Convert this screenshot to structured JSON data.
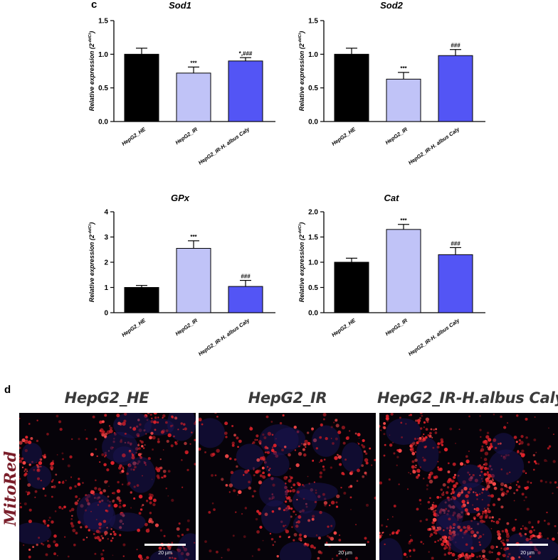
{
  "panel_c_letter": "c",
  "panel_d_letter": "d",
  "colors": {
    "HepG2_HE": "#000000",
    "HepG2_IR": "#c0c3f7",
    "HepG2_IR-H. albus Caly": "#5355f5"
  },
  "ylabel_main": "Relative expression (2",
  "ylabel_sup": "-ddCt",
  "ylabel_close": ")",
  "chart_data": [
    {
      "type": "bar",
      "title": "Sod1",
      "categories": [
        "HepG2_HE",
        "HepG2_IR",
        "HepG2_IR-H. albus Caly"
      ],
      "values": [
        1.0,
        0.72,
        0.9
      ],
      "errors": [
        0.09,
        0.09,
        0.05
      ],
      "annotations": [
        "",
        "***",
        "*,###"
      ],
      "ylim": [
        0,
        1.5
      ],
      "yticks": [
        "0.0",
        "0.5",
        "1.0",
        "1.5"
      ],
      "ytick_values": [
        0,
        0.5,
        1.0,
        1.5
      ]
    },
    {
      "type": "bar",
      "title": "Sod2",
      "categories": [
        "HepG2_HE",
        "HepG2_IR",
        "HepG2_IR-H. albus Caly"
      ],
      "values": [
        1.0,
        0.63,
        0.98
      ],
      "errors": [
        0.09,
        0.1,
        0.09
      ],
      "annotations": [
        "",
        "***",
        "###"
      ],
      "ylim": [
        0,
        1.5
      ],
      "yticks": [
        "0.0",
        "0.5",
        "1.0",
        "1.5"
      ],
      "ytick_values": [
        0,
        0.5,
        1.0,
        1.5
      ]
    },
    {
      "type": "bar",
      "title": "GPx",
      "categories": [
        "HepG2_HE",
        "HepG2_IR",
        "HepG2_IR-H. albus Caly"
      ],
      "values": [
        1.0,
        2.55,
        1.04
      ],
      "errors": [
        0.08,
        0.3,
        0.24
      ],
      "annotations": [
        "",
        "***",
        "###"
      ],
      "ylim": [
        0,
        4
      ],
      "yticks": [
        "0",
        "1",
        "2",
        "3",
        "4"
      ],
      "ytick_values": [
        0,
        1,
        2,
        3,
        4
      ]
    },
    {
      "type": "bar",
      "title": "Cat",
      "categories": [
        "HepG2_HE",
        "HepG2_IR",
        "HepG2_IR-H. albus Caly"
      ],
      "values": [
        1.0,
        1.65,
        1.15
      ],
      "errors": [
        0.08,
        0.1,
        0.14
      ],
      "annotations": [
        "",
        "***",
        "###"
      ],
      "ylim": [
        0,
        2.0
      ],
      "yticks": [
        "0.0",
        "0.5",
        "1.0",
        "1.5",
        "2.0"
      ],
      "ytick_values": [
        0,
        0.5,
        1.0,
        1.5,
        2.0
      ]
    }
  ],
  "microscopy": {
    "row_label": "MitoRed",
    "columns": [
      "HepG2_HE",
      "HepG2_IR",
      "HepG2_IR-H.albus Caly"
    ],
    "scale_label": "20 µm"
  }
}
